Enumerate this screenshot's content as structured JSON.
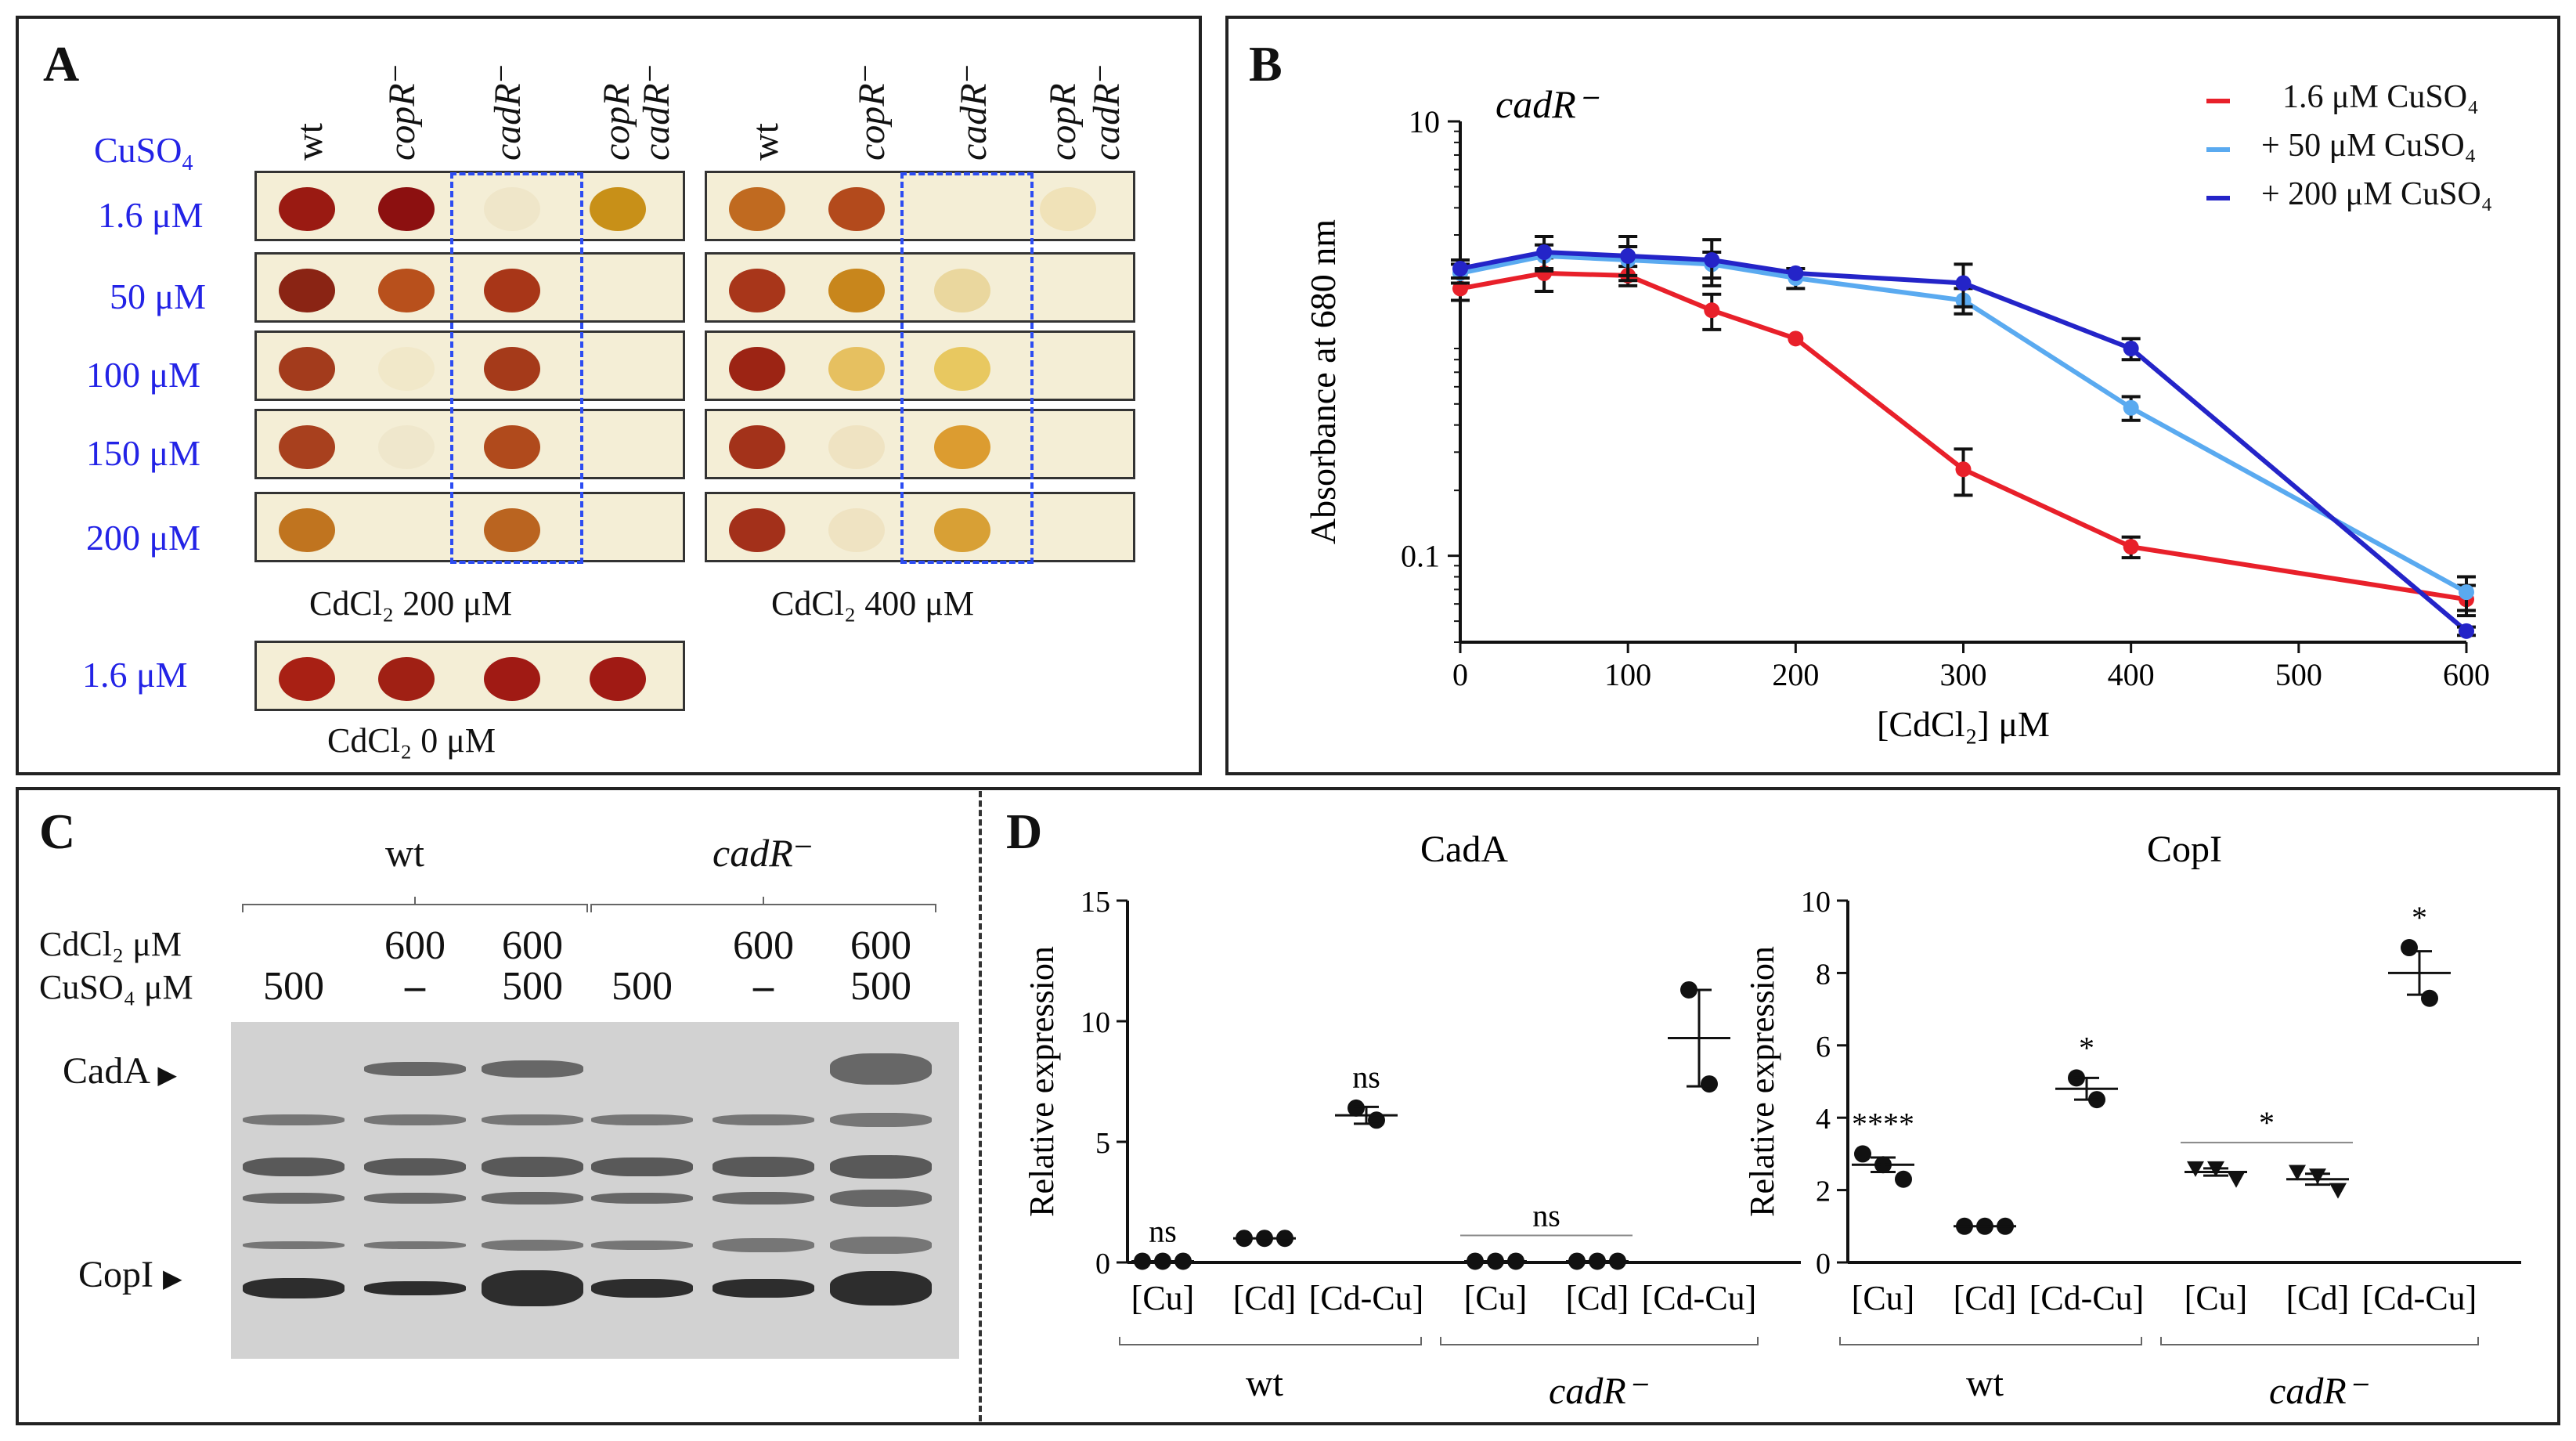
{
  "panels": {
    "A": "A",
    "B": "B",
    "C": "C",
    "D": "D"
  },
  "panelA": {
    "cuso4_header": "CuSO",
    "cuso4_sub": "4",
    "strains": [
      "wt",
      "copR⁻",
      "cadR⁻",
      "copR",
      "cadR⁻"
    ],
    "conc": [
      "1.6 μM",
      "50 μM",
      "100 μM",
      "150 μM",
      "200 μM"
    ],
    "bottom_conc": "1.6 μM",
    "caption_left": "CdCl₂ 200 μM",
    "caption_right": "CdCl₂ 400 μM",
    "caption_bottom": "CdCl₂ 0 μM"
  },
  "panelB": {
    "legend": [
      "1.6 μM CuSO₄",
      "+ 50 μM CuSO₄",
      "+ 200 μM CuSO₄"
    ],
    "colors": {
      "red": "#e8202a",
      "light": "#5aaaf0",
      "dark": "#2424c8"
    },
    "chart_data": {
      "type": "line",
      "title": "cadR⁻",
      "xlabel": "[CdCl₂] μM",
      "ylabel": "Absorbance at 680 nm",
      "yscale": "log",
      "ylim": [
        0.04,
        10
      ],
      "xlim": [
        0,
        600
      ],
      "xticks": [
        0,
        100,
        200,
        300,
        400,
        500,
        600
      ],
      "yticks": [
        {
          "value": 10,
          "label": "10"
        },
        {
          "value": 0.1,
          "label": "0.1"
        }
      ],
      "series": [
        {
          "name": "1.6 μM CuSO₄",
          "color": "#e8202a",
          "x": [
            0,
            50,
            100,
            150,
            200,
            300,
            400,
            600
          ],
          "y": [
            1.7,
            2.0,
            1.95,
            1.35,
            1.0,
            0.25,
            0.11,
            0.063
          ],
          "err": [
            0.2,
            0.35,
            0.2,
            0.25,
            0,
            0.06,
            0.012,
            0.01
          ]
        },
        {
          "name": "+ 50 μM CuSO₄",
          "color": "#5aaaf0",
          "x": [
            0,
            50,
            100,
            150,
            200,
            300,
            400,
            600
          ],
          "y": [
            2.0,
            2.4,
            2.3,
            2.2,
            1.9,
            1.5,
            0.48,
            0.068
          ],
          "err": [
            0.2,
            0.3,
            0.35,
            0.3,
            0.2,
            0.2,
            0.06,
            0.012
          ]
        },
        {
          "name": "+ 200 μM CuSO₄",
          "color": "#2424c8",
          "x": [
            0,
            50,
            100,
            150,
            200,
            300,
            400,
            600
          ],
          "y": [
            2.1,
            2.5,
            2.4,
            2.3,
            2.0,
            1.8,
            0.9,
            0.045
          ],
          "err": [
            0.2,
            0.45,
            0.55,
            0.55,
            0,
            0.4,
            0.1,
            0.002
          ]
        }
      ]
    }
  },
  "panelC": {
    "group_wt": "wt",
    "group_cadR": "cadR⁻",
    "row_cd": "CdCl₂ μM",
    "row_cu": "CuSO₄ μM",
    "cd_values": [
      "",
      "600",
      "600",
      "",
      "600",
      "600"
    ],
    "cu_values": [
      "500",
      "–",
      "500",
      "500",
      "–",
      "500"
    ],
    "band_cada": "CadA",
    "band_copi": "CopI"
  },
  "panelD": {
    "left": {
      "chart_data": {
        "type": "scatter",
        "title": "CadA",
        "ylabel": "Relative expression",
        "ylim": [
          0,
          15
        ],
        "yticks": [
          0,
          5,
          10,
          15
        ],
        "categories": [
          "[Cu]",
          "[Cd]",
          "[Cd-Cu]",
          "[Cu]",
          "[Cd]",
          "[Cd-Cu]"
        ],
        "groups": [
          "wt",
          "cadR⁻"
        ],
        "points": [
          [
            0.05,
            0.05,
            0.05
          ],
          [
            1,
            1,
            1
          ],
          [
            6.4,
            5.9
          ],
          [
            0.05,
            0.05,
            0.05
          ],
          [
            0.05,
            0.05,
            0.05
          ],
          [
            11.3,
            7.4
          ]
        ],
        "means": [
          0.05,
          1,
          6.1,
          0.05,
          0.05,
          9.3
        ],
        "errs": [
          0,
          0,
          0.35,
          0,
          0,
          2.0
        ],
        "annotations": [
          "ns",
          "",
          "ns",
          "ns",
          "",
          ""
        ]
      }
    },
    "right": {
      "chart_data": {
        "type": "scatter",
        "title": "CopI",
        "ylabel": "Relative expression",
        "ylim": [
          0,
          10
        ],
        "yticks": [
          0,
          2,
          4,
          6,
          8,
          10
        ],
        "categories": [
          "[Cu]",
          "[Cd]",
          "[Cd-Cu]",
          "[Cu]",
          "[Cd]",
          "[Cd-Cu]"
        ],
        "groups": [
          "wt",
          "cadR⁻"
        ],
        "points": [
          [
            3.0,
            2.7,
            2.3
          ],
          [
            1,
            1,
            1
          ],
          [
            5.1,
            4.5
          ],
          [
            2.6,
            2.6,
            2.3
          ],
          [
            2.5,
            2.4,
            2.0
          ],
          [
            8.7,
            7.3
          ]
        ],
        "means": [
          2.7,
          1,
          4.8,
          2.5,
          2.3,
          8.0
        ],
        "errs": [
          0.2,
          0,
          0.3,
          0.1,
          0.15,
          0.6
        ],
        "annotations": [
          "****",
          "",
          "*",
          "*",
          "",
          "*"
        ]
      }
    }
  }
}
